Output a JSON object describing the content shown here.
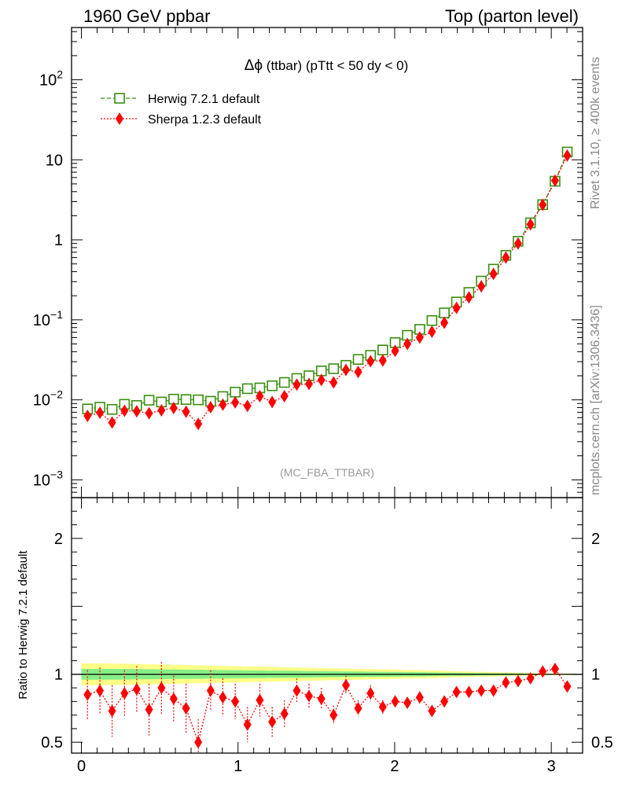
{
  "header": {
    "left": "1960 GeV ppbar",
    "right": "Top (parton level)"
  },
  "side_labels": {
    "rivet": "Rivet 3.1.10, ≥ 400k events",
    "mcplots": "mcplots.cern.ch [arXiv:1306.3436]"
  },
  "watermark": "(MC_FBA_TTBAR)",
  "colors": {
    "herwig": "#3a8f0f",
    "sherpa": "#ff0000",
    "band_inner": "#86ee86",
    "band_outer": "#ffff88"
  },
  "chart_data": [
    {
      "type": "line",
      "title": "Δϕ (ttbar) (pTtt < 50 dy < 0)",
      "title_symbol": "Δϕ",
      "title_rest": " (ttbar) (pTtt < 50 dy < 0)",
      "yscale": "log",
      "xlim": [
        -0.063,
        3.2
      ],
      "ylim": [
        0.0006,
        450
      ],
      "y_ticks": [
        {
          "value": 0.001,
          "base": "10",
          "exp": "−3"
        },
        {
          "value": 0.01,
          "base": "10",
          "exp": "−2"
        },
        {
          "value": 0.1,
          "base": "10",
          "exp": "−1"
        },
        {
          "value": 1,
          "base": "1",
          "exp": ""
        },
        {
          "value": 10,
          "base": "10",
          "exp": ""
        },
        {
          "value": 100,
          "base": "10",
          "exp": "2"
        }
      ],
      "x": [
        0.039,
        0.118,
        0.196,
        0.275,
        0.353,
        0.432,
        0.511,
        0.589,
        0.668,
        0.746,
        0.825,
        0.903,
        0.982,
        1.06,
        1.139,
        1.218,
        1.296,
        1.375,
        1.453,
        1.532,
        1.61,
        1.689,
        1.767,
        1.846,
        1.924,
        2.003,
        2.081,
        2.16,
        2.238,
        2.317,
        2.395,
        2.474,
        2.553,
        2.631,
        2.71,
        2.788,
        2.867,
        2.945,
        3.024,
        3.102
      ],
      "legend_position": "top-left",
      "series": [
        {
          "name": "Herwig 7.2.1 default",
          "marker": "open-square",
          "line": "dashed",
          "values": [
            0.0077,
            0.0081,
            0.0076,
            0.0088,
            0.0085,
            0.0099,
            0.0094,
            0.0102,
            0.0101,
            0.01,
            0.0096,
            0.011,
            0.0125,
            0.0138,
            0.0141,
            0.015,
            0.0165,
            0.0185,
            0.02,
            0.023,
            0.0245,
            0.027,
            0.032,
            0.036,
            0.042,
            0.052,
            0.064,
            0.076,
            0.098,
            0.122,
            0.167,
            0.22,
            0.305,
            0.43,
            0.64,
            0.96,
            1.63,
            2.75,
            5.4,
            12.5
          ]
        },
        {
          "name": "Sherpa 1.2.3 default",
          "marker": "filled-diamond",
          "line": "dotted",
          "values": [
            0.0063,
            0.0069,
            0.0052,
            0.0073,
            0.0072,
            0.0068,
            0.0074,
            0.0079,
            0.0071,
            0.005,
            0.0081,
            0.0087,
            0.0093,
            0.0084,
            0.0111,
            0.0094,
            0.0111,
            0.0155,
            0.0158,
            0.0177,
            0.0165,
            0.0237,
            0.0223,
            0.0304,
            0.031,
            0.041,
            0.05,
            0.06,
            0.071,
            0.092,
            0.141,
            0.191,
            0.262,
            0.375,
            0.6,
            0.9,
            1.56,
            2.74,
            5.5,
            11.3
          ]
        }
      ]
    },
    {
      "type": "line",
      "ylabel": "Ratio to Herwig 7.2.1 default",
      "xlim": [
        -0.063,
        3.2
      ],
      "ylim": [
        0.42,
        2.3
      ],
      "y_ticks": [
        0.5,
        1,
        2
      ],
      "y_tick_labels": [
        "0.5",
        "1",
        "2"
      ],
      "x_ticks": [
        0,
        1,
        2,
        3
      ],
      "x_tick_labels": [
        "0",
        "1",
        "2",
        "3"
      ],
      "reference_line": 1,
      "x": [
        0.039,
        0.118,
        0.196,
        0.275,
        0.353,
        0.432,
        0.511,
        0.589,
        0.668,
        0.746,
        0.825,
        0.903,
        0.982,
        1.06,
        1.139,
        1.218,
        1.296,
        1.375,
        1.453,
        1.532,
        1.61,
        1.689,
        1.767,
        1.846,
        1.924,
        2.003,
        2.081,
        2.16,
        2.238,
        2.317,
        2.395,
        2.474,
        2.553,
        2.631,
        2.71,
        2.788,
        2.867,
        2.945,
        3.024,
        3.102
      ],
      "series": [
        {
          "name": "Sherpa 1.2.3 default",
          "values": [
            0.85,
            0.88,
            0.73,
            0.86,
            0.89,
            0.74,
            0.9,
            0.82,
            0.75,
            0.5,
            0.88,
            0.83,
            0.8,
            0.63,
            0.81,
            0.65,
            0.71,
            0.88,
            0.84,
            0.82,
            0.7,
            0.92,
            0.75,
            0.86,
            0.76,
            0.8,
            0.79,
            0.83,
            0.73,
            0.8,
            0.87,
            0.87,
            0.88,
            0.88,
            0.94,
            0.95,
            0.97,
            1.02,
            1.04,
            0.91
          ],
          "errors": [
            0.18,
            0.17,
            0.19,
            0.17,
            0.17,
            0.19,
            0.19,
            0.17,
            0.18,
            0.17,
            0.15,
            0.14,
            0.13,
            0.13,
            0.12,
            0.11,
            0.1,
            0.09,
            0.09,
            0.08,
            0.07,
            0.07,
            0.06,
            0.06,
            0.05,
            0.045,
            0.04,
            0.035,
            0.03,
            0.025,
            0.02,
            0.02,
            0.015,
            0.015,
            0.012,
            0.01,
            0.01,
            0.01,
            0.01,
            0.008
          ]
        }
      ],
      "band_inner": [
        0.04,
        0.04,
        0.04,
        0.039,
        0.038,
        0.037,
        0.036,
        0.035,
        0.034,
        0.033,
        0.032,
        0.031,
        0.03,
        0.029,
        0.028,
        0.027,
        0.026,
        0.025,
        0.024,
        0.023,
        0.022,
        0.021,
        0.02,
        0.019,
        0.018,
        0.017,
        0.016,
        0.015,
        0.014,
        0.012,
        0.011,
        0.01,
        0.009,
        0.008,
        0.007,
        0.006,
        0.005,
        0.004,
        0.003,
        0.003
      ],
      "band_outer": [
        0.08,
        0.08,
        0.079,
        0.078,
        0.076,
        0.074,
        0.072,
        0.07,
        0.068,
        0.066,
        0.064,
        0.062,
        0.06,
        0.058,
        0.056,
        0.054,
        0.052,
        0.05,
        0.048,
        0.046,
        0.044,
        0.042,
        0.04,
        0.038,
        0.036,
        0.034,
        0.032,
        0.03,
        0.028,
        0.025,
        0.022,
        0.02,
        0.018,
        0.016,
        0.014,
        0.012,
        0.01,
        0.008,
        0.006,
        0.006
      ]
    }
  ]
}
